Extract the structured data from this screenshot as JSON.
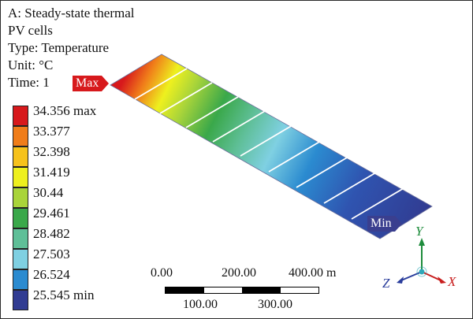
{
  "header": {
    "line1": "A: Steady-state thermal",
    "line2": "PV cells",
    "line3": "Type: Temperature",
    "line4": "Unit: °C",
    "line5": "Time: 1"
  },
  "legend": {
    "entries": [
      {
        "label": "34.356 max",
        "color": "#d7191c"
      },
      {
        "label": "33.377",
        "color": "#f07d1a"
      },
      {
        "label": "32.398",
        "color": "#f6c21c"
      },
      {
        "label": "31.419",
        "color": "#eef01e"
      },
      {
        "label": "30.44",
        "color": "#a9d43a"
      },
      {
        "label": "29.461",
        "color": "#3aa84a"
      },
      {
        "label": "28.482",
        "color": "#5fbf98"
      },
      {
        "label": "27.503",
        "color": "#7fd0e2"
      },
      {
        "label": "26.524",
        "color": "#2b8bd0"
      },
      {
        "label": "25.545 min",
        "color": "#313c92"
      }
    ]
  },
  "markers": {
    "max": "Max",
    "min": "Min"
  },
  "scale": {
    "top_labels": [
      "0.00",
      "200.00",
      "400.00 m"
    ],
    "bottom_labels": [
      "100.00",
      "300.00"
    ]
  },
  "triad": {
    "x": "X",
    "y": "Y",
    "z": "Z"
  },
  "colors": {
    "x_axis": "#c81e1e",
    "y_axis": "#1e8c3c",
    "z_axis": "#2a3d9c",
    "origin": "#2fa8b8"
  }
}
